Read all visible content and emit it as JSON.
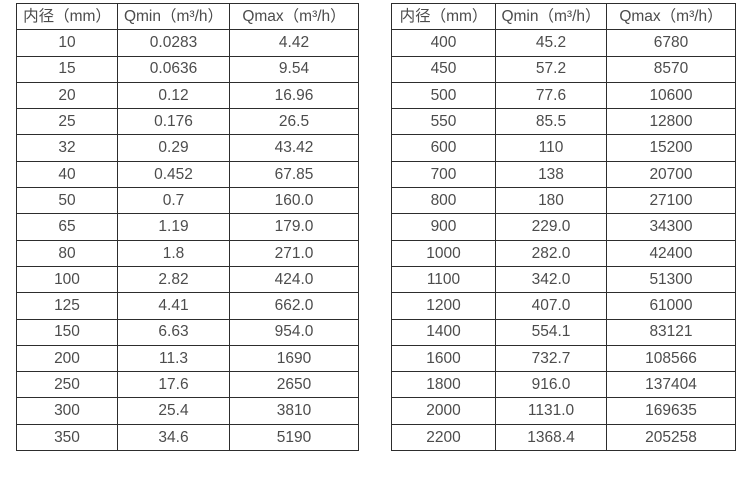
{
  "chart_data": [
    {
      "type": "table",
      "columns": [
        "内径（mm）",
        "Qmin（m³/h）",
        "Qmax（m³/h）"
      ],
      "rows": [
        [
          "10",
          "0.0283",
          "4.42"
        ],
        [
          "15",
          "0.0636",
          "9.54"
        ],
        [
          "20",
          "0.12",
          "16.96"
        ],
        [
          "25",
          "0.176",
          "26.5"
        ],
        [
          "32",
          "0.29",
          "43.42"
        ],
        [
          "40",
          "0.452",
          "67.85"
        ],
        [
          "50",
          "0.7",
          "160.0"
        ],
        [
          "65",
          "1.19",
          "179.0"
        ],
        [
          "80",
          "1.8",
          "271.0"
        ],
        [
          "100",
          "2.82",
          "424.0"
        ],
        [
          "125",
          "4.41",
          "662.0"
        ],
        [
          "150",
          "6.63",
          "954.0"
        ],
        [
          "200",
          "11.3",
          "1690"
        ],
        [
          "250",
          "17.6",
          "2650"
        ],
        [
          "300",
          "25.4",
          "3810"
        ],
        [
          "350",
          "34.6",
          "5190"
        ]
      ]
    },
    {
      "type": "table",
      "columns": [
        "内径（mm）",
        "Qmin（m³/h）",
        "Qmax（m³/h）"
      ],
      "rows": [
        [
          "400",
          "45.2",
          "6780"
        ],
        [
          "450",
          "57.2",
          "8570"
        ],
        [
          "500",
          "77.6",
          "10600"
        ],
        [
          "550",
          "85.5",
          "12800"
        ],
        [
          "600",
          "110",
          "15200"
        ],
        [
          "700",
          "138",
          "20700"
        ],
        [
          "800",
          "180",
          "27100"
        ],
        [
          "900",
          "229.0",
          "34300"
        ],
        [
          "1000",
          "282.0",
          "42400"
        ],
        [
          "1100",
          "342.0",
          "51300"
        ],
        [
          "1200",
          "407.0",
          "61000"
        ],
        [
          "1400",
          "554.1",
          "83121"
        ],
        [
          "1600",
          "732.7",
          "108566"
        ],
        [
          "1800",
          "916.0",
          "137404"
        ],
        [
          "2000",
          "1131.0",
          "169635"
        ],
        [
          "2200",
          "1368.4",
          "205258"
        ]
      ]
    }
  ],
  "colors": {
    "border": "#2d2d2d",
    "text": "#4c4c4c",
    "background": "#ffffff"
  }
}
